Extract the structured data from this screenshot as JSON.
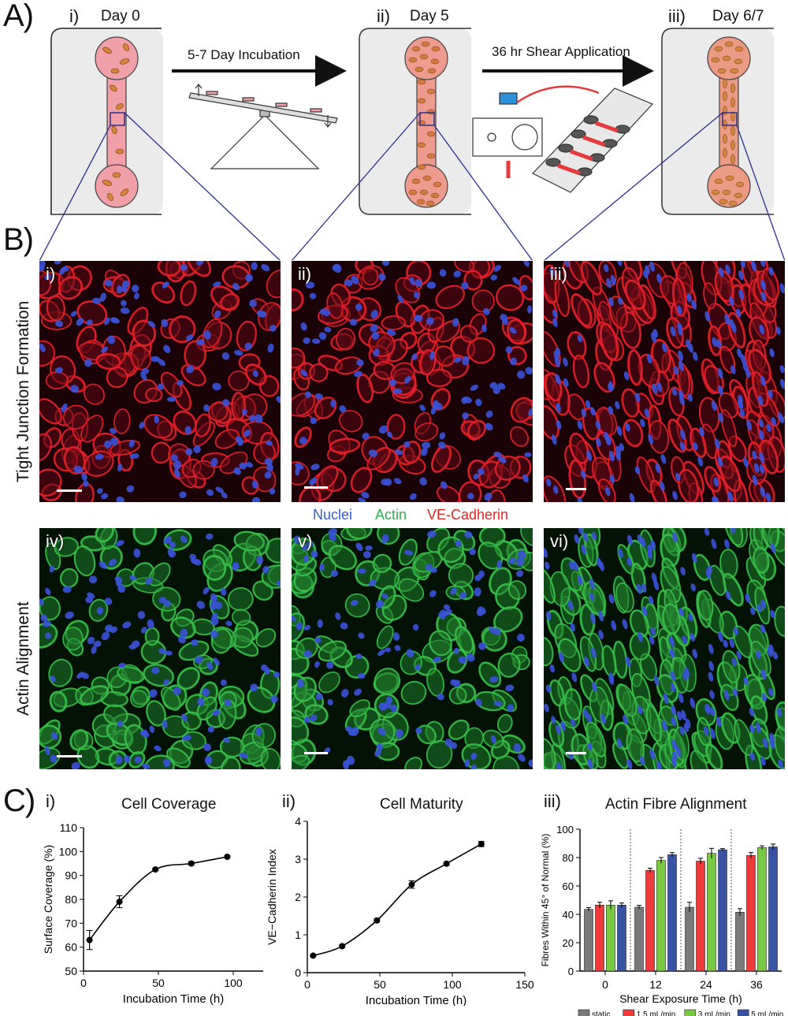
{
  "panelA": {
    "letter": "A)",
    "steps": [
      {
        "roman": "i)",
        "day": "Day 0"
      },
      {
        "roman": "ii)",
        "day": "Day 5"
      },
      {
        "roman": "iii)",
        "day": "Day 6/7"
      }
    ],
    "arrow1_label": "5-7 Day Incubation",
    "arrow2_label": "36 hr Shear Application"
  },
  "panelB": {
    "letter": "B)",
    "row1_label": "Tight Junction Formation",
    "row2_label": "Actin Alignment",
    "row1_panels": [
      "i)",
      "ii)",
      "iii)"
    ],
    "row2_panels": [
      "iv)",
      "v)",
      "vi)"
    ],
    "legend": {
      "nuclei": "Nuclei",
      "actin": "Actin",
      "vecad": "VE-Cadherin"
    },
    "colors": {
      "nuclei": "#2e5cd6",
      "actin": "#2db34a",
      "vecad": "#e52424"
    }
  },
  "panelC": {
    "letter": "C)",
    "charts": [
      {
        "roman": "i)",
        "title": "Cell Coverage"
      },
      {
        "roman": "ii)",
        "title": "Cell Maturity"
      },
      {
        "roman": "iii)",
        "title": "Actin Fibre Alignment"
      }
    ]
  },
  "chart_data": [
    {
      "type": "scatter",
      "title": "Cell Coverage",
      "xlabel": "Incubation Time  (h)",
      "ylabel": "Surface Coverage (%)",
      "xlim": [
        0,
        120
      ],
      "ylim": [
        50,
        110
      ],
      "xticks": [
        "0",
        "50",
        "100"
      ],
      "yticks": [
        "50",
        "60",
        "70",
        "80",
        "90",
        "100",
        "110"
      ],
      "x": [
        4,
        24,
        48,
        72,
        96
      ],
      "y": [
        63,
        79,
        92.5,
        95,
        97.8
      ],
      "err": [
        4,
        2.5,
        0.5,
        0.7,
        0.4
      ],
      "fit": "sigmoid"
    },
    {
      "type": "scatter",
      "title": "Cell Maturity",
      "xlabel": "Incubation Time  (h)",
      "ylabel": "VE−Cadherin Index",
      "xlim": [
        0,
        150
      ],
      "ylim": [
        0,
        4
      ],
      "xticks": [
        "0",
        "50",
        "100",
        "150"
      ],
      "yticks": [
        "0",
        "1",
        "2",
        "3",
        "4"
      ],
      "x": [
        4,
        24,
        48,
        72,
        96,
        120
      ],
      "y": [
        0.45,
        0.7,
        1.38,
        2.33,
        2.88,
        3.4
      ],
      "err": [
        0.02,
        0.03,
        0.04,
        0.1,
        0.04,
        0.07
      ],
      "fit": "sigmoid"
    },
    {
      "type": "bar",
      "title": "Actin Fibre Alignment",
      "xlabel": "Shear Exposure Time  (h)",
      "ylabel": "Fibres Within 45° of Normal (%)",
      "ylim": [
        0,
        100
      ],
      "yticks": [
        "0",
        "20",
        "40",
        "60",
        "80",
        "100"
      ],
      "categories": [
        "0",
        "12",
        "24",
        "36"
      ],
      "series": [
        {
          "name": "static",
          "color": "#7a7a7a",
          "values": [
            43.5,
            45,
            45,
            41.5
          ],
          "err": [
            1.2,
            1.3,
            3.5,
            2.5
          ]
        },
        {
          "name": "1.5 mL/min",
          "color": "#ef3b3b",
          "values": [
            46.5,
            71,
            77.5,
            81.5
          ],
          "err": [
            2,
            1.5,
            2,
            2
          ]
        },
        {
          "name": "3 mL/min",
          "color": "#7ac943",
          "values": [
            46.5,
            78,
            83,
            87
          ],
          "err": [
            3,
            2,
            3.5,
            1.3
          ]
        },
        {
          "name": "5 mL/min",
          "color": "#3953a4",
          "values": [
            46.5,
            82,
            85.5,
            87.5
          ],
          "err": [
            1.5,
            1.5,
            0.8,
            2
          ]
        }
      ]
    }
  ]
}
